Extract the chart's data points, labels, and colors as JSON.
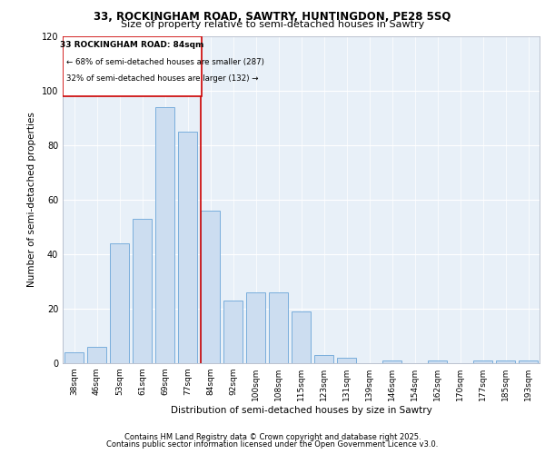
{
  "title_line1": "33, ROCKINGHAM ROAD, SAWTRY, HUNTINGDON, PE28 5SQ",
  "title_line2": "Size of property relative to semi-detached houses in Sawtry",
  "xlabel": "Distribution of semi-detached houses by size in Sawtry",
  "ylabel": "Number of semi-detached properties",
  "categories": [
    "38sqm",
    "46sqm",
    "53sqm",
    "61sqm",
    "69sqm",
    "77sqm",
    "84sqm",
    "92sqm",
    "100sqm",
    "108sqm",
    "115sqm",
    "123sqm",
    "131sqm",
    "139sqm",
    "146sqm",
    "154sqm",
    "162sqm",
    "170sqm",
    "177sqm",
    "185sqm",
    "193sqm"
  ],
  "values": [
    4,
    6,
    44,
    53,
    94,
    85,
    56,
    23,
    26,
    26,
    19,
    3,
    2,
    0,
    1,
    0,
    1,
    0,
    1,
    1,
    1
  ],
  "bar_color": "#ccddf0",
  "bar_edge_color": "#7aaedc",
  "highlight_index": 6,
  "highlight_color": "#cc0000",
  "annotation_title": "33 ROCKINGHAM ROAD: 84sqm",
  "annotation_line1": "← 68% of semi-detached houses are smaller (287)",
  "annotation_line2": "32% of semi-detached houses are larger (132) →",
  "ylim": [
    0,
    120
  ],
  "yticks": [
    0,
    20,
    40,
    60,
    80,
    100,
    120
  ],
  "background_color": "#dce8f4",
  "plot_bg_color": "#e8f0f8",
  "footer_line1": "Contains HM Land Registry data © Crown copyright and database right 2025.",
  "footer_line2": "Contains public sector information licensed under the Open Government Licence v3.0."
}
